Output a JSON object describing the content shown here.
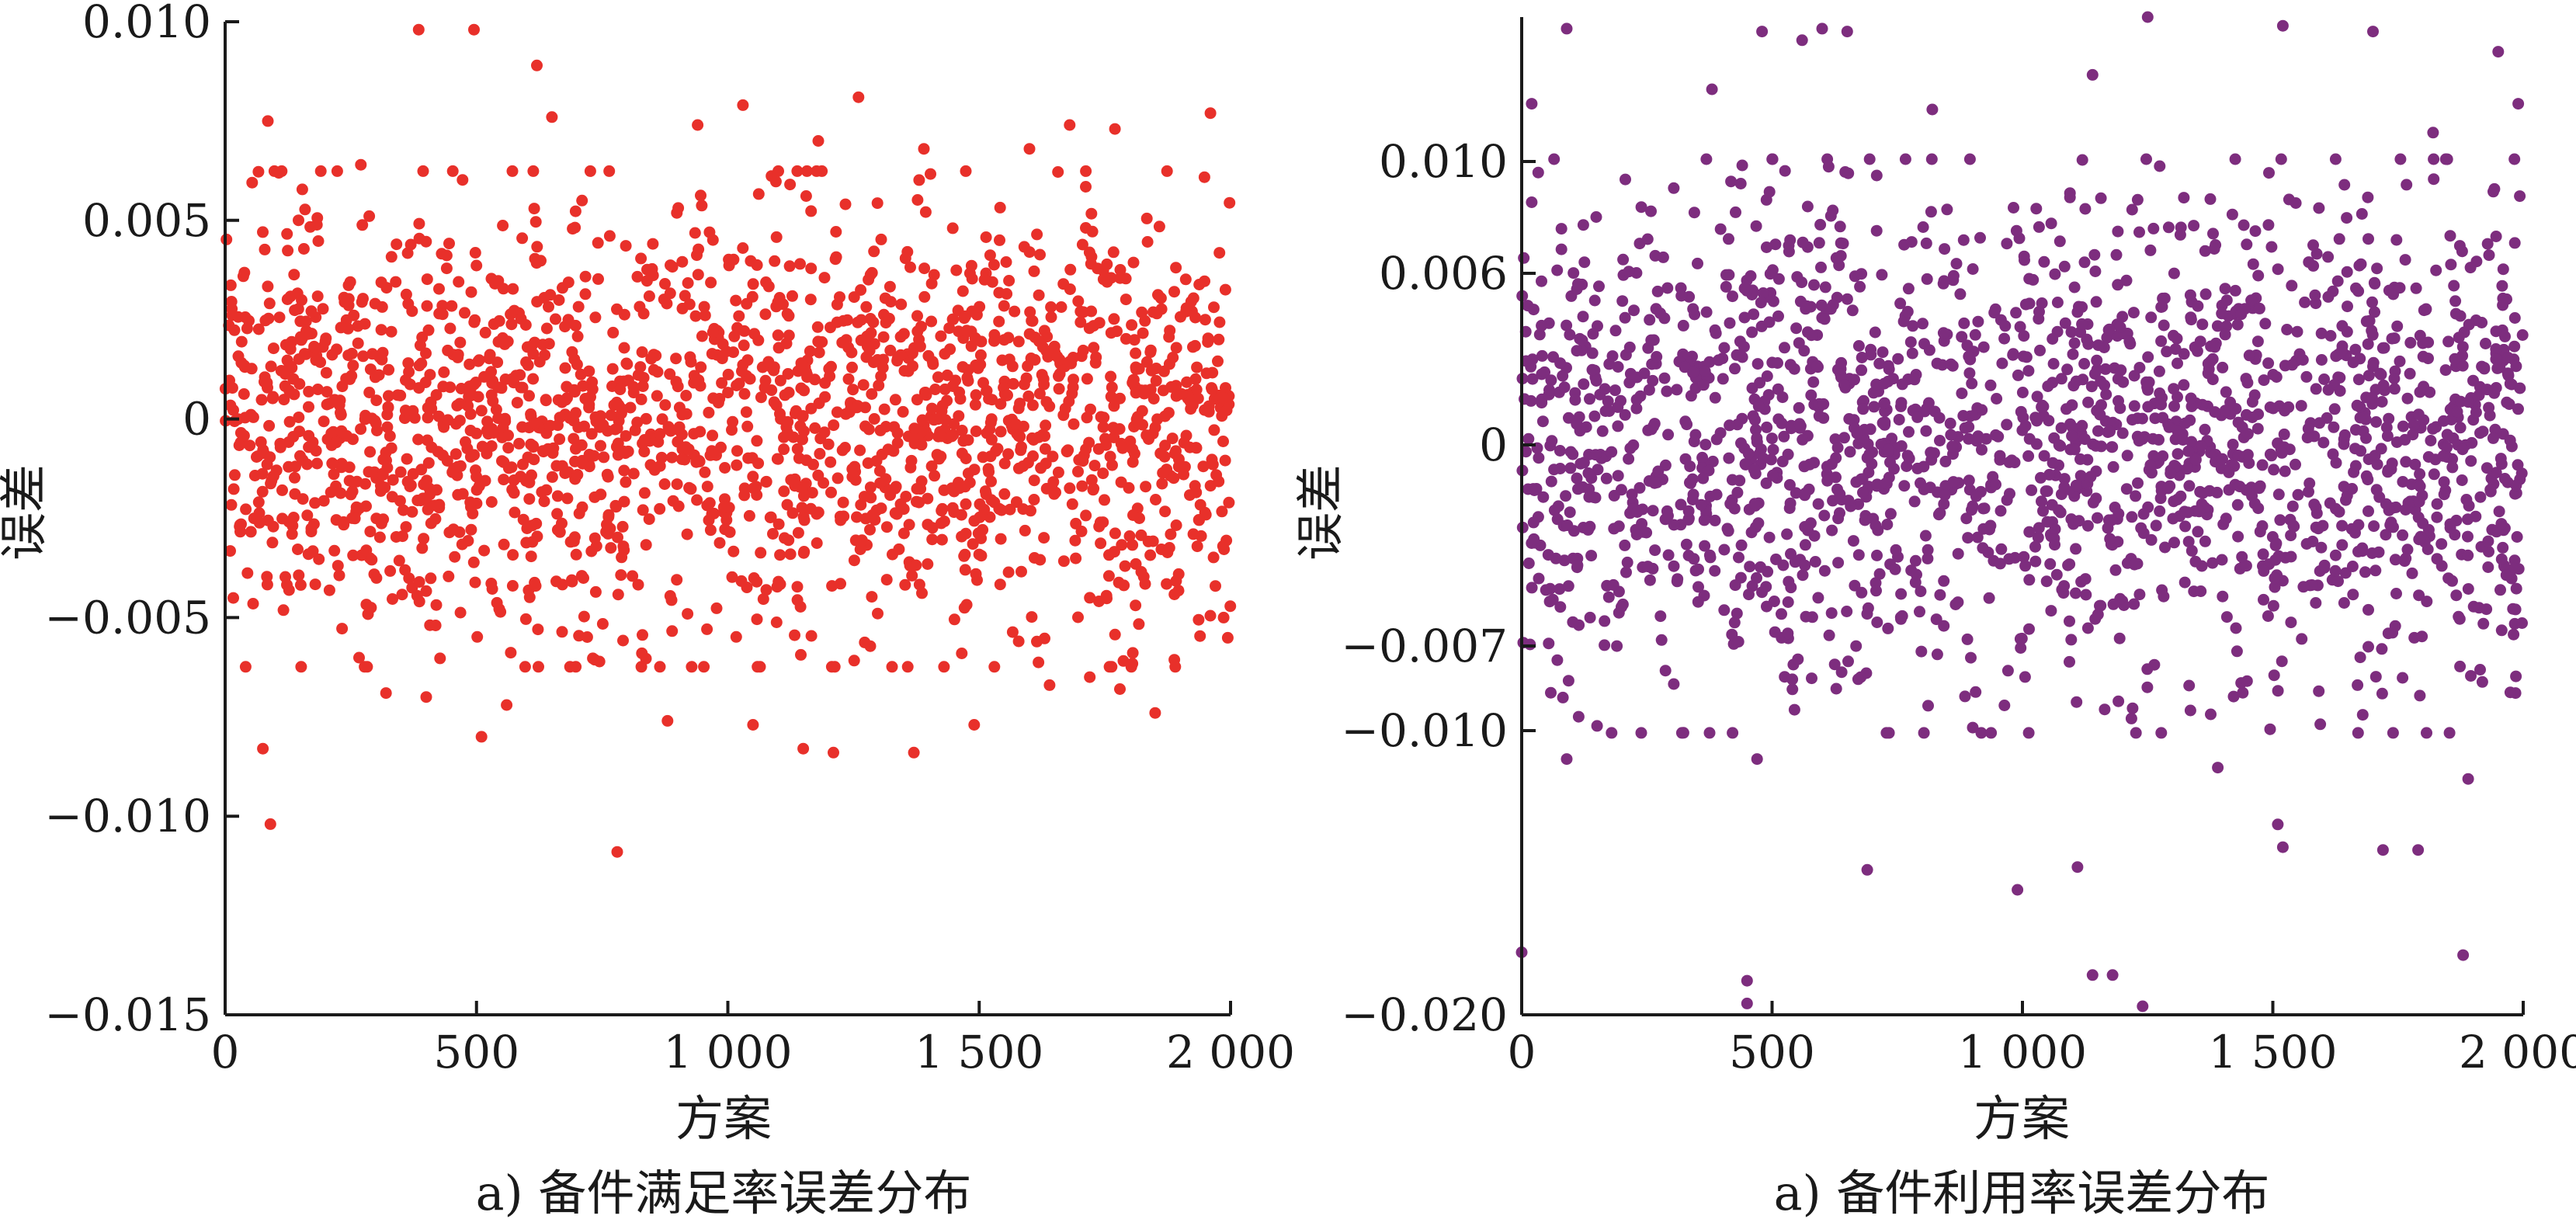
{
  "chart_data": [
    {
      "type": "scatter",
      "caption": "a) 备件满足率误差分布",
      "xlabel": "方案",
      "ylabel": "误差",
      "xlim": [
        0,
        2000
      ],
      "ylim": [
        -0.015,
        0.01
      ],
      "xticks": [
        {
          "value": 0,
          "label": "0"
        },
        {
          "value": 500,
          "label": "500"
        },
        {
          "value": 1000,
          "label": "1 000"
        },
        {
          "value": 1500,
          "label": "1 500"
        },
        {
          "value": 2000,
          "label": "2 000"
        }
      ],
      "yticks": [
        {
          "value": 0.01,
          "label": "0.010"
        },
        {
          "value": 0.005,
          "label": "0.005"
        },
        {
          "value": 0,
          "label": "0"
        },
        {
          "value": -0.005,
          "label": "−0.005"
        },
        {
          "value": -0.01,
          "label": "−0.010"
        },
        {
          "value": -0.015,
          "label": "−0.015"
        }
      ],
      "color": "#e8302a",
      "n_points": 2000,
      "core_spread": 0.0026,
      "grid": false,
      "outliers": [
        {
          "x": 385,
          "y": 0.0098
        },
        {
          "x": 495,
          "y": 0.0098
        },
        {
          "x": 620,
          "y": 0.0089
        },
        {
          "x": 650,
          "y": 0.0076
        },
        {
          "x": 85,
          "y": 0.0075
        },
        {
          "x": 1030,
          "y": 0.0079
        },
        {
          "x": 1260,
          "y": 0.0081
        },
        {
          "x": 1680,
          "y": 0.0074
        },
        {
          "x": 1770,
          "y": 0.0073
        },
        {
          "x": 1960,
          "y": 0.0077
        },
        {
          "x": 1180,
          "y": 0.007
        },
        {
          "x": 940,
          "y": 0.0074
        },
        {
          "x": 1390,
          "y": 0.0068
        },
        {
          "x": 270,
          "y": 0.0064
        },
        {
          "x": 1600,
          "y": 0.0068
        },
        {
          "x": 90,
          "y": -0.0102
        },
        {
          "x": 780,
          "y": -0.0109
        },
        {
          "x": 75,
          "y": -0.0083
        },
        {
          "x": 1150,
          "y": -0.0083
        },
        {
          "x": 1210,
          "y": -0.0084
        },
        {
          "x": 1370,
          "y": -0.0084
        },
        {
          "x": 1490,
          "y": -0.0077
        },
        {
          "x": 510,
          "y": -0.008
        },
        {
          "x": 1850,
          "y": -0.0074
        },
        {
          "x": 880,
          "y": -0.0076
        },
        {
          "x": 1050,
          "y": -0.0077
        },
        {
          "x": 400,
          "y": -0.007
        },
        {
          "x": 560,
          "y": -0.0072
        },
        {
          "x": 1640,
          "y": -0.0067
        },
        {
          "x": 1720,
          "y": -0.0065
        },
        {
          "x": 320,
          "y": -0.0069
        },
        {
          "x": 1780,
          "y": -0.0068
        }
      ]
    },
    {
      "type": "scatter",
      "caption": "a) 备件利用率误差分布",
      "xlabel": "方案",
      "ylabel": "误差",
      "xlim": [
        0,
        2000
      ],
      "ylim": [
        -0.02,
        0.015
      ],
      "yscale_note": "tick spacing on this axis is non-uniform",
      "xticks": [
        {
          "value": 0,
          "label": "0"
        },
        {
          "value": 500,
          "label": "500"
        },
        {
          "value": 1000,
          "label": "1 000"
        },
        {
          "value": 1500,
          "label": "1 500"
        },
        {
          "value": 2000,
          "label": "2 000"
        }
      ],
      "yticks": [
        {
          "value": 0.01,
          "label": "0.010"
        },
        {
          "value": 0.006,
          "label": "0.006"
        },
        {
          "value": 0,
          "label": "0"
        },
        {
          "value": -0.007,
          "label": "−0.007"
        },
        {
          "value": -0.01,
          "label": "−0.010"
        },
        {
          "value": -0.02,
          "label": "−0.020"
        }
      ],
      "color": "#7d2d7e",
      "n_points": 2000,
      "core_spread": 0.0042,
      "grid": false,
      "outliers": [
        {
          "x": 90,
          "y": 0.0146
        },
        {
          "x": 480,
          "y": 0.0145
        },
        {
          "x": 650,
          "y": 0.0145
        },
        {
          "x": 1250,
          "y": 0.015
        },
        {
          "x": 1700,
          "y": 0.0145
        },
        {
          "x": 1950,
          "y": 0.0138
        },
        {
          "x": 560,
          "y": 0.0142
        },
        {
          "x": 600,
          "y": 0.0146
        },
        {
          "x": 1520,
          "y": 0.0147
        },
        {
          "x": 20,
          "y": 0.012
        },
        {
          "x": 380,
          "y": 0.0125
        },
        {
          "x": 1140,
          "y": 0.013
        },
        {
          "x": 1990,
          "y": 0.012
        },
        {
          "x": 1820,
          "y": 0.011
        },
        {
          "x": 820,
          "y": 0.0118
        },
        {
          "x": 0,
          "y": -0.0178
        },
        {
          "x": 450,
          "y": -0.0188
        },
        {
          "x": 450,
          "y": -0.0196
        },
        {
          "x": 690,
          "y": -0.0149
        },
        {
          "x": 990,
          "y": -0.0156
        },
        {
          "x": 1110,
          "y": -0.0148
        },
        {
          "x": 1140,
          "y": -0.0186
        },
        {
          "x": 1180,
          "y": -0.0186
        },
        {
          "x": 1240,
          "y": -0.0197
        },
        {
          "x": 1510,
          "y": -0.0133
        },
        {
          "x": 1520,
          "y": -0.0141
        },
        {
          "x": 1720,
          "y": -0.0142
        },
        {
          "x": 1790,
          "y": -0.0142
        },
        {
          "x": 1880,
          "y": -0.0179
        },
        {
          "x": 1890,
          "y": -0.0117
        },
        {
          "x": 90,
          "y": -0.011
        },
        {
          "x": 470,
          "y": -0.011
        },
        {
          "x": 1390,
          "y": -0.0113
        }
      ]
    }
  ]
}
